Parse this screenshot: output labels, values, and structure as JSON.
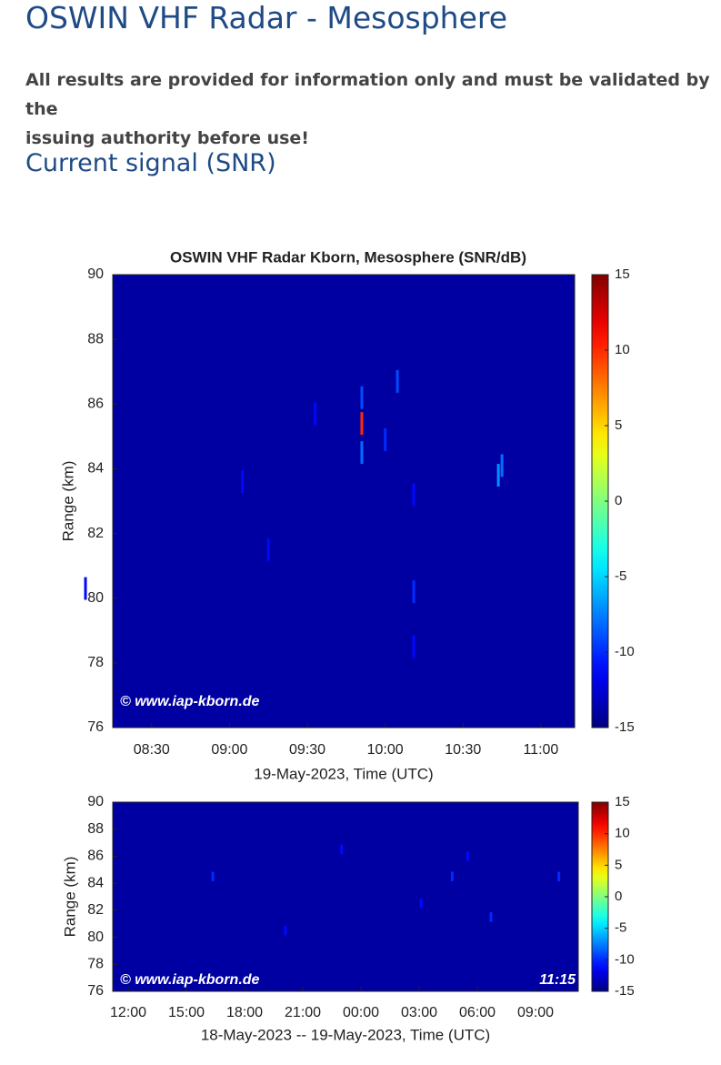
{
  "header": {
    "title": "OSWIN VHF Radar - Mesosphere",
    "notice": [
      "All results are provided for information only and must be validated by the",
      "issuing authority before use!"
    ],
    "subtitle": "Current signal (SNR)"
  },
  "chart_data": [
    {
      "type": "heatmap",
      "title": "OSWIN VHF Radar Kborn, Mesosphere (SNR/dB)",
      "x_label": "19-May-2023, Time (UTC)",
      "y_label": "Range (km)",
      "watermark": "© www.iap-kborn.de",
      "xlim": [
        495,
        673
      ],
      "xticks": [
        {
          "value": 510,
          "label": "08:30"
        },
        {
          "value": 540,
          "label": "09:00"
        },
        {
          "value": 570,
          "label": "09:30"
        },
        {
          "value": 600,
          "label": "10:00"
        },
        {
          "value": 630,
          "label": "10:30"
        },
        {
          "value": 660,
          "label": "11:00"
        }
      ],
      "ylim": [
        76,
        90
      ],
      "yticks": [
        76,
        78,
        80,
        82,
        84,
        86,
        88,
        90
      ],
      "clim": [
        -15,
        15
      ],
      "cticks": [
        -15,
        -10,
        -5,
        0,
        5,
        10,
        15
      ],
      "background_value": -14,
      "x": [
        591,
        591,
        591,
        604.7,
        643.6,
        645,
        611,
        611,
        611,
        545,
        600,
        484.5,
        555,
        573
      ],
      "y": [
        84.5,
        85.4,
        86.2,
        86.7,
        83.8,
        84.1,
        80.2,
        78.5,
        83.2,
        83.6,
        84.9,
        80.3,
        81.5,
        85.7
      ],
      "values": [
        -8,
        10,
        -9,
        -9,
        -7,
        -8,
        -10,
        -11,
        -11,
        -11,
        -10,
        -11,
        -11,
        -11
      ]
    },
    {
      "type": "heatmap",
      "y_label": "Range (km)",
      "watermark": "© www.iap-kborn.de",
      "timestamp": "11:15",
      "xlim": [
        11.2,
        35.2
      ],
      "xticks": [
        {
          "value": 12,
          "label": "12:00"
        },
        {
          "value": 15,
          "label": "15:00"
        },
        {
          "value": 18,
          "label": "18:00"
        },
        {
          "value": 21,
          "label": "21:00"
        },
        {
          "value": 24,
          "label": "00:00"
        },
        {
          "value": 27,
          "label": "03:00"
        },
        {
          "value": 30,
          "label": "06:00"
        },
        {
          "value": 33,
          "label": "09:00"
        }
      ],
      "x_label": "18-May-2023 -- 19-May-2023, Time (UTC)",
      "ylim": [
        76,
        90
      ],
      "yticks": [
        76,
        78,
        80,
        82,
        84,
        86,
        88,
        90
      ],
      "clim": [
        -15,
        15
      ],
      "cticks": [
        -15,
        -10,
        -5,
        0,
        5,
        10,
        15
      ],
      "background_value": -14,
      "x": [
        16.36,
        28.7,
        30.7,
        34.2,
        27.1,
        29.5,
        23.0,
        20.1
      ],
      "y": [
        84.5,
        84.5,
        81.5,
        84.5,
        82.5,
        86.0,
        86.5,
        80.5
      ],
      "values": [
        -10,
        -10,
        -10,
        -10,
        -11,
        -11,
        -11,
        -11
      ]
    }
  ]
}
